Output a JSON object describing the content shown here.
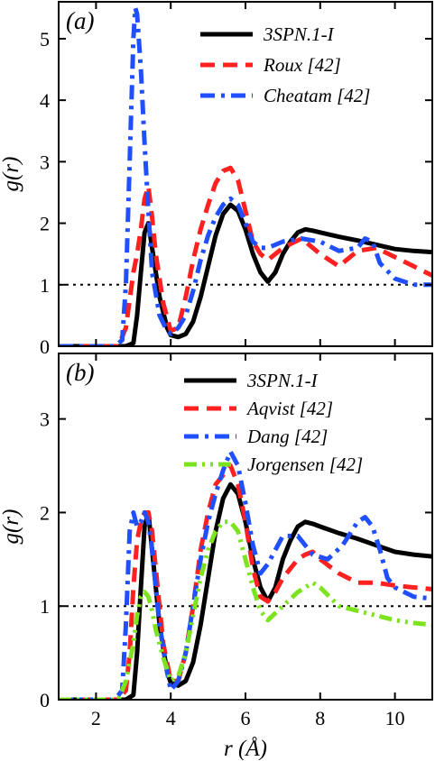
{
  "chart_data": [
    {
      "type": "line",
      "panel_label": "(a)",
      "xlabel": "",
      "ylabel": "g(r)",
      "xlim": [
        1,
        11
      ],
      "ylim": [
        0,
        5.6
      ],
      "yticks": [
        0,
        1,
        2,
        3,
        4,
        5
      ],
      "xticks": [
        2,
        4,
        6,
        8,
        10
      ],
      "xtick_labels_shown": false,
      "reference_line": {
        "y": 1,
        "style": "dotted",
        "color": "#000000"
      },
      "legend_position": "top-right",
      "series": [
        {
          "name": "3SPN.1-I",
          "color": "#000000",
          "dash": "solid",
          "x": [
            1.0,
            2.8,
            3.0,
            3.1,
            3.2,
            3.3,
            3.4,
            3.5,
            3.7,
            3.9,
            4.0,
            4.2,
            4.4,
            4.6,
            4.8,
            5.0,
            5.2,
            5.4,
            5.6,
            5.8,
            6.0,
            6.2,
            6.4,
            6.6,
            6.8,
            7.0,
            7.2,
            7.4,
            7.6,
            7.8,
            8.0,
            8.5,
            9.0,
            9.5,
            10.0,
            10.5,
            11.0
          ],
          "y": [
            0.0,
            0.0,
            0.05,
            0.5,
            1.2,
            1.85,
            2.0,
            1.6,
            0.8,
            0.3,
            0.18,
            0.15,
            0.2,
            0.4,
            0.8,
            1.3,
            1.8,
            2.15,
            2.3,
            2.2,
            1.9,
            1.5,
            1.2,
            1.05,
            1.2,
            1.5,
            1.7,
            1.85,
            1.9,
            1.88,
            1.85,
            1.78,
            1.72,
            1.65,
            1.58,
            1.55,
            1.53
          ]
        },
        {
          "name": "Roux [42]",
          "color": "#ff2020",
          "dash": "dashed",
          "x": [
            1.0,
            2.6,
            2.8,
            3.0,
            3.1,
            3.2,
            3.3,
            3.4,
            3.5,
            3.6,
            3.8,
            4.0,
            4.2,
            4.4,
            4.6,
            4.8,
            5.0,
            5.2,
            5.4,
            5.6,
            5.8,
            6.0,
            6.2,
            6.4,
            6.6,
            7.0,
            7.5,
            8.0,
            8.5,
            9.0,
            9.5,
            10.0,
            10.5,
            11.0
          ],
          "y": [
            0.0,
            0.0,
            0.3,
            1.2,
            1.5,
            1.9,
            2.4,
            2.6,
            2.1,
            1.5,
            0.7,
            0.25,
            0.3,
            0.8,
            1.4,
            1.9,
            2.3,
            2.65,
            2.85,
            2.9,
            2.7,
            2.2,
            1.7,
            1.5,
            1.4,
            1.6,
            1.75,
            1.5,
            1.3,
            1.55,
            1.6,
            1.45,
            1.3,
            1.15
          ]
        },
        {
          "name": "Cheatam [42]",
          "color": "#1f4fff",
          "dash": "dashdot",
          "x": [
            1.0,
            2.5,
            2.7,
            2.8,
            2.9,
            3.0,
            3.05,
            3.1,
            3.2,
            3.3,
            3.4,
            3.5,
            3.7,
            3.9,
            4.0,
            4.2,
            4.4,
            4.6,
            4.8,
            5.0,
            5.2,
            5.4,
            5.6,
            5.8,
            6.0,
            6.2,
            6.4,
            6.6,
            7.0,
            7.5,
            8.0,
            8.5,
            9.0,
            9.2,
            9.4,
            9.6,
            10.0,
            10.5,
            11.0
          ],
          "y": [
            0.0,
            0.0,
            0.1,
            1.0,
            3.0,
            5.0,
            5.5,
            5.4,
            4.5,
            3.3,
            2.2,
            1.2,
            0.5,
            0.25,
            0.2,
            0.3,
            0.5,
            0.9,
            1.4,
            1.8,
            2.1,
            2.3,
            2.4,
            2.3,
            2.0,
            1.7,
            1.6,
            1.6,
            1.7,
            1.75,
            1.7,
            1.55,
            1.6,
            1.75,
            1.7,
            1.35,
            1.1,
            1.0,
            1.0
          ]
        }
      ]
    },
    {
      "type": "line",
      "panel_label": "(b)",
      "xlabel": "r (Å)",
      "ylabel": "g(r)",
      "xlim": [
        1,
        11
      ],
      "ylim": [
        0,
        3.7
      ],
      "yticks": [
        0,
        1,
        2,
        3
      ],
      "xticks": [
        2,
        4,
        6,
        8,
        10
      ],
      "reference_line": {
        "y": 1,
        "style": "dotted",
        "color": "#000000"
      },
      "legend_position": "top-right",
      "series": [
        {
          "name": "3SPN.1-I",
          "color": "#000000",
          "dash": "solid",
          "x": [
            1.0,
            2.8,
            3.0,
            3.1,
            3.2,
            3.3,
            3.4,
            3.5,
            3.7,
            3.9,
            4.0,
            4.2,
            4.4,
            4.6,
            4.8,
            5.0,
            5.2,
            5.4,
            5.6,
            5.8,
            6.0,
            6.2,
            6.4,
            6.6,
            6.8,
            7.0,
            7.2,
            7.4,
            7.6,
            7.8,
            8.0,
            8.5,
            9.0,
            9.5,
            10.0,
            10.5,
            11.0
          ],
          "y": [
            0.0,
            0.0,
            0.05,
            0.5,
            1.2,
            1.85,
            2.0,
            1.6,
            0.8,
            0.3,
            0.18,
            0.15,
            0.2,
            0.4,
            0.8,
            1.3,
            1.8,
            2.15,
            2.3,
            2.2,
            1.9,
            1.5,
            1.2,
            1.05,
            1.2,
            1.5,
            1.7,
            1.85,
            1.9,
            1.88,
            1.85,
            1.78,
            1.72,
            1.65,
            1.58,
            1.55,
            1.53
          ]
        },
        {
          "name": "Aqvist [42]",
          "color": "#ff2020",
          "dash": "dashed",
          "x": [
            1.0,
            2.6,
            2.8,
            2.9,
            3.0,
            3.1,
            3.2,
            3.3,
            3.4,
            3.5,
            3.6,
            3.8,
            4.0,
            4.2,
            4.4,
            4.6,
            4.8,
            5.0,
            5.2,
            5.4,
            5.6,
            5.8,
            6.0,
            6.2,
            6.4,
            6.6,
            6.8,
            7.0,
            7.2,
            7.4,
            7.6,
            7.8,
            8.0,
            8.5,
            9.0,
            9.5,
            10.0,
            10.5,
            11.0
          ],
          "y": [
            0.0,
            0.0,
            0.1,
            0.5,
            1.2,
            1.7,
            1.9,
            2.0,
            2.0,
            1.8,
            1.4,
            0.6,
            0.2,
            0.2,
            0.5,
            1.0,
            1.6,
            2.0,
            2.3,
            2.4,
            2.5,
            2.3,
            1.9,
            1.4,
            1.1,
            1.05,
            1.15,
            1.3,
            1.4,
            1.5,
            1.55,
            1.58,
            1.5,
            1.35,
            1.25,
            1.25,
            1.22,
            1.2,
            1.18
          ]
        },
        {
          "name": "Dang [42]",
          "color": "#1f4fff",
          "dash": "dashdot",
          "x": [
            1.0,
            2.5,
            2.7,
            2.8,
            2.9,
            3.0,
            3.1,
            3.2,
            3.3,
            3.4,
            3.5,
            3.7,
            3.9,
            4.0,
            4.2,
            4.4,
            4.6,
            4.8,
            5.0,
            5.2,
            5.4,
            5.6,
            5.8,
            6.0,
            6.2,
            6.4,
            6.6,
            7.0,
            7.4,
            7.8,
            8.2,
            8.6,
            9.0,
            9.2,
            9.4,
            9.6,
            9.8,
            10.0,
            10.5,
            11.0
          ],
          "y": [
            0.0,
            0.0,
            0.1,
            0.8,
            1.8,
            2.0,
            1.85,
            1.9,
            2.0,
            1.9,
            1.6,
            0.8,
            0.3,
            0.1,
            0.2,
            0.5,
            1.0,
            1.5,
            1.9,
            2.2,
            2.45,
            2.65,
            2.5,
            2.1,
            1.65,
            1.35,
            1.45,
            1.75,
            1.75,
            1.55,
            1.5,
            1.65,
            1.9,
            1.95,
            1.85,
            1.6,
            1.3,
            1.2,
            1.1,
            1.08
          ]
        },
        {
          "name": "Jorgensen [42]",
          "color": "#7de31f",
          "dash": "dashdotdot",
          "x": [
            1.0,
            2.6,
            2.8,
            3.0,
            3.1,
            3.2,
            3.3,
            3.4,
            3.5,
            3.6,
            3.8,
            4.0,
            4.2,
            4.4,
            4.6,
            4.8,
            5.0,
            5.2,
            5.4,
            5.6,
            5.8,
            6.0,
            6.2,
            6.4,
            6.6,
            7.0,
            7.4,
            7.8,
            8.0,
            8.5,
            9.0,
            9.5,
            10.0,
            10.5,
            11.0
          ],
          "y": [
            0.0,
            0.0,
            0.2,
            0.6,
            0.9,
            1.1,
            1.15,
            1.1,
            0.95,
            0.75,
            0.45,
            0.2,
            0.25,
            0.5,
            0.9,
            1.3,
            1.6,
            1.8,
            1.9,
            1.9,
            1.8,
            1.5,
            1.2,
            0.95,
            0.85,
            1.0,
            1.15,
            1.25,
            1.2,
            1.0,
            0.95,
            0.9,
            0.85,
            0.82,
            0.8
          ]
        }
      ]
    }
  ]
}
